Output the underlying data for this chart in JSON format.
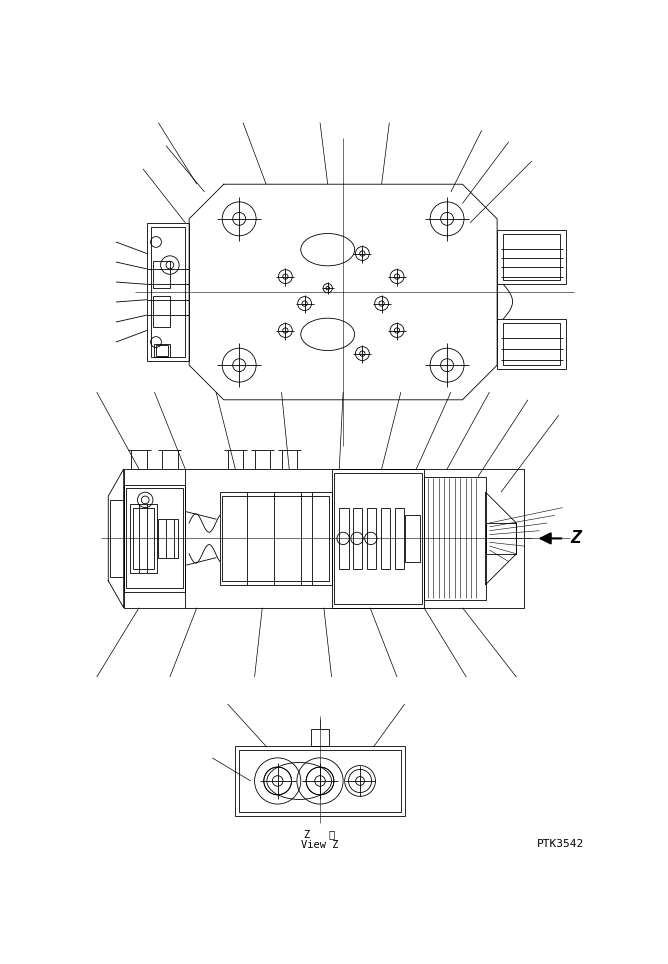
{
  "bg_color": "#ffffff",
  "line_color": "#000000",
  "fig_width": 6.68,
  "fig_height": 9.64,
  "dpi": 100,
  "watermark": "PTK3542",
  "view_label_1": "Z   視",
  "view_label_2": "View Z"
}
